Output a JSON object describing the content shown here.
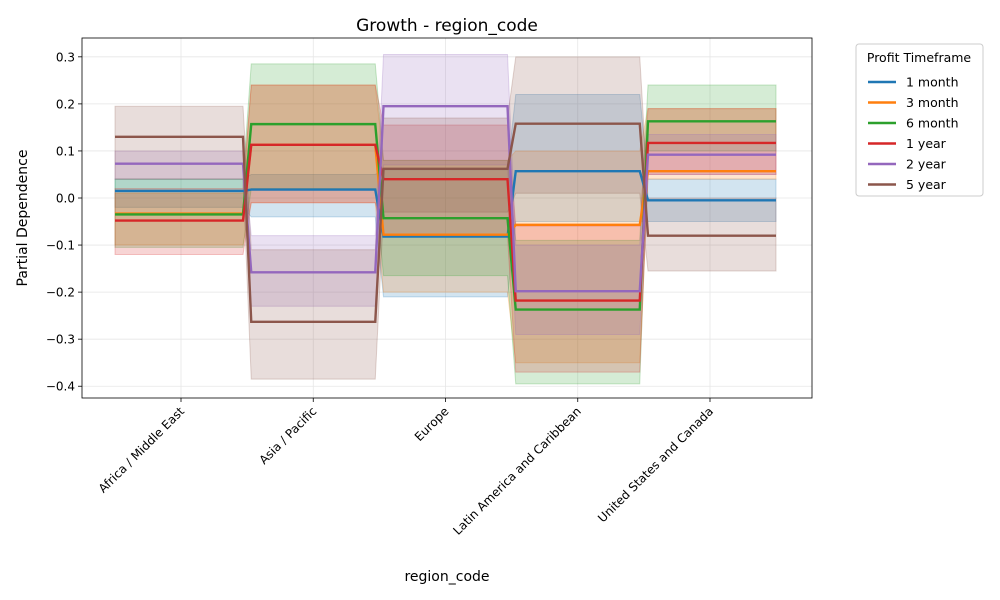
{
  "chart_data": {
    "type": "line",
    "title": "Growth - region_code",
    "xlabel": "region_code",
    "ylabel": "Partial Dependence",
    "categories": [
      "Africa / Middle East",
      "Asia / Pacific",
      "Europe",
      "Latin America and Caribbean",
      "United States and Canada"
    ],
    "ylim": [
      -0.425,
      0.34
    ],
    "yticks": [
      -0.4,
      -0.3,
      -0.2,
      -0.1,
      0.0,
      0.1,
      0.2,
      0.3
    ],
    "ytick_labels": [
      "−0.4",
      "−0.3",
      "−0.2",
      "−0.1",
      "0.0",
      "0.1",
      "0.2",
      "0.3"
    ],
    "grid": true,
    "legend": {
      "title": "Profit Timeframe",
      "placement": "outside-top-right"
    },
    "series": [
      {
        "name": "1 month",
        "color": "#1f77b4",
        "values": [
          0.015,
          0.018,
          -0.082,
          0.057,
          -0.005
        ],
        "lower": [
          -0.02,
          -0.04,
          -0.21,
          -0.05,
          -0.05
        ],
        "upper": [
          0.04,
          0.05,
          0.06,
          0.22,
          0.04
        ]
      },
      {
        "name": "3 month",
        "color": "#ff7f0e",
        "values": [
          -0.033,
          0.113,
          -0.078,
          -0.057,
          0.057
        ],
        "lower": [
          -0.1,
          -0.01,
          -0.2,
          -0.35,
          0.04
        ],
        "upper": [
          0.01,
          0.24,
          0.08,
          0.1,
          0.19
        ]
      },
      {
        "name": "6 month",
        "color": "#2ca02c",
        "values": [
          -0.035,
          0.157,
          -0.043,
          -0.237,
          0.163
        ],
        "lower": [
          -0.105,
          0.02,
          -0.165,
          -0.395,
          0.1
        ],
        "upper": [
          0.04,
          0.285,
          0.08,
          -0.09,
          0.24
        ]
      },
      {
        "name": "1 year",
        "color": "#d62728",
        "values": [
          -0.048,
          0.113,
          0.04,
          -0.218,
          0.117
        ],
        "lower": [
          -0.12,
          -0.01,
          -0.08,
          -0.37,
          0.05
        ],
        "upper": [
          0.02,
          0.24,
          0.155,
          -0.06,
          0.19
        ]
      },
      {
        "name": "2 year",
        "color": "#9467bd",
        "values": [
          0.073,
          -0.158,
          0.195,
          -0.198,
          0.092
        ],
        "lower": [
          0.04,
          -0.23,
          0.07,
          -0.29,
          0.05
        ],
        "upper": [
          0.1,
          -0.08,
          0.305,
          -0.1,
          0.135
        ]
      },
      {
        "name": "5 year",
        "color": "#8c564b",
        "values": [
          0.13,
          -0.263,
          0.062,
          0.158,
          -0.08
        ],
        "lower": [
          0.04,
          -0.385,
          -0.03,
          0.01,
          -0.155
        ],
        "upper": [
          0.195,
          -0.11,
          0.17,
          0.3,
          0.0
        ]
      }
    ]
  }
}
